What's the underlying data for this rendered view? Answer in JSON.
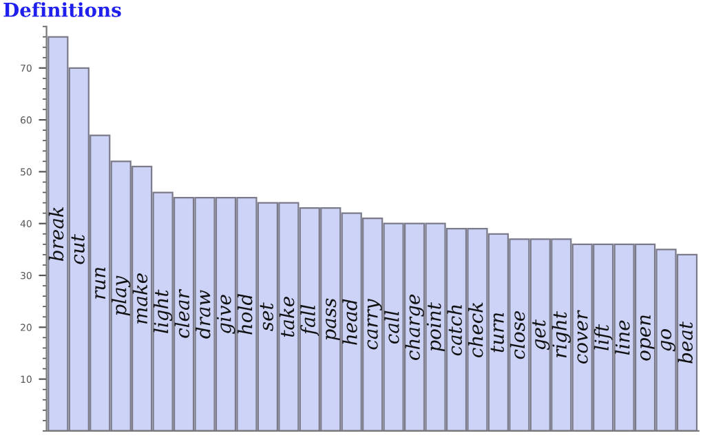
{
  "chart_data": {
    "type": "bar",
    "title": "Definitions",
    "categories": [
      "break",
      "cut",
      "run",
      "play",
      "make",
      "light",
      "clear",
      "draw",
      "give",
      "hold",
      "set",
      "take",
      "fall",
      "pass",
      "head",
      "carry",
      "call",
      "charge",
      "point",
      "catch",
      "check",
      "turn",
      "close",
      "get",
      "right",
      "cover",
      "lift",
      "line",
      "open",
      "go",
      "beat"
    ],
    "values": [
      76,
      70,
      57,
      52,
      51,
      46,
      45,
      45,
      45,
      45,
      44,
      44,
      43,
      43,
      42,
      41,
      40,
      40,
      40,
      39,
      39,
      38,
      37,
      37,
      37,
      36,
      36,
      36,
      36,
      35,
      34
    ],
    "color": "#ccd3f6",
    "ylim": [
      0,
      78
    ],
    "yticks": [
      10,
      20,
      30,
      40,
      50,
      60,
      70
    ],
    "grid": false
  }
}
